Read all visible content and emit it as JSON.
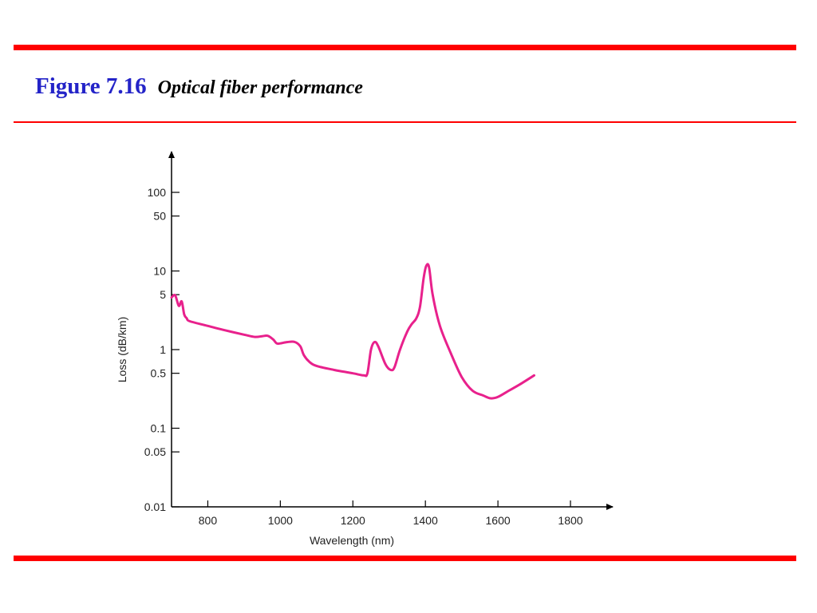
{
  "colors": {
    "rule": "#ff0000",
    "title": "#2424c8",
    "curve": "#e8218c",
    "axis": "#000000"
  },
  "header": {
    "figure_number": "Figure 7.16",
    "caption": "Optical fiber performance"
  },
  "chart_data": {
    "type": "line",
    "title": "",
    "xlabel": "Wavelength (nm)",
    "ylabel": "Loss (dB/km)",
    "xlim": [
      700,
      1800
    ],
    "ylim": [
      0.01,
      100
    ],
    "y_scale": "log",
    "grid": false,
    "x_ticks": [
      800,
      1000,
      1200,
      1400,
      1600,
      1800
    ],
    "x_tick_labels": [
      "800",
      "1000",
      "1200",
      "1400",
      "1600",
      "1800"
    ],
    "y_ticks": [
      0.01,
      0.05,
      0.1,
      0.5,
      1,
      5,
      10,
      50,
      100
    ],
    "y_tick_labels": [
      "0.01",
      "0.05",
      "0.1",
      "0.5",
      "1",
      "5",
      "10",
      "50",
      "100"
    ],
    "series": [
      {
        "x": [
          700,
          710,
          720,
          728,
          735,
          742,
          750,
          800,
          850,
          900,
          930,
          950,
          965,
          980,
          990,
          1000,
          1020,
          1040,
          1055,
          1065,
          1080,
          1100,
          1150,
          1200,
          1230,
          1240,
          1250,
          1260,
          1270,
          1290,
          1305,
          1315,
          1330,
          1350,
          1362,
          1375,
          1385,
          1395,
          1402,
          1410,
          1420,
          1440,
          1470,
          1500,
          1530,
          1560,
          1580,
          1600,
          1630,
          1660,
          1700
        ],
        "y": [
          4.6,
          4.9,
          3.6,
          4.1,
          2.8,
          2.5,
          2.3,
          2.0,
          1.75,
          1.55,
          1.45,
          1.48,
          1.5,
          1.35,
          1.2,
          1.2,
          1.25,
          1.25,
          1.1,
          0.85,
          0.7,
          0.62,
          0.55,
          0.5,
          0.47,
          0.5,
          1.0,
          1.25,
          1.1,
          0.65,
          0.55,
          0.6,
          1.0,
          1.7,
          2.1,
          2.5,
          3.5,
          8.0,
          11.5,
          11.2,
          5.0,
          2.0,
          0.9,
          0.45,
          0.3,
          0.26,
          0.24,
          0.25,
          0.3,
          0.36,
          0.47
        ]
      }
    ]
  }
}
